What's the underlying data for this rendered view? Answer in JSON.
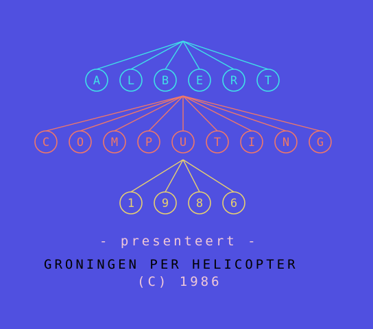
{
  "colors": {
    "background": "#5050e0",
    "row1": "#40e0e8",
    "row2": "#f07868",
    "row3": "#e8d070",
    "presents": "#f0c8d8",
    "title": "#000000",
    "copyright": "#f0c8d8"
  },
  "logo": {
    "rows": [
      {
        "letters": [
          "A",
          "L",
          "B",
          "E",
          "R",
          "T"
        ],
        "color_key": "row1"
      },
      {
        "letters": [
          "C",
          "O",
          "M",
          "P",
          "U",
          "T",
          "I",
          "N",
          "G"
        ],
        "color_key": "row2"
      },
      {
        "letters": [
          "1",
          "9",
          "8",
          "6"
        ],
        "color_key": "row3"
      }
    ]
  },
  "text": {
    "presents": "- presenteert -",
    "title": "GRONINGEN PER HELICOPTER",
    "copyright": "(C) 1986"
  }
}
